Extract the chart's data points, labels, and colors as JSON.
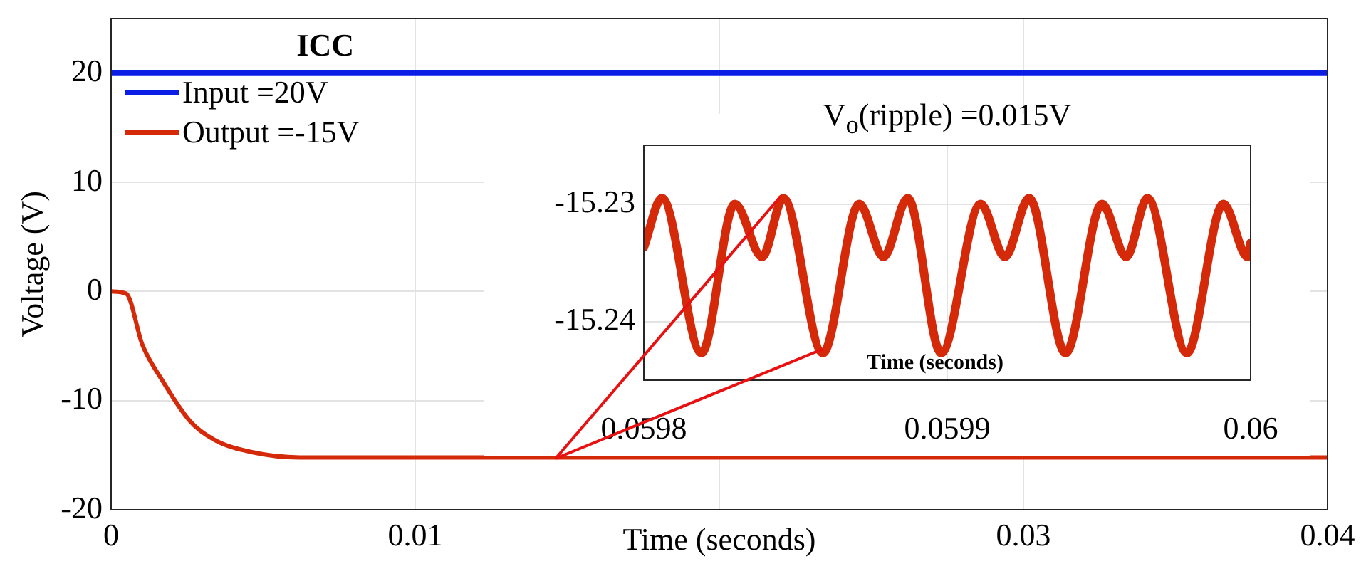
{
  "chart_data": [
    {
      "type": "line",
      "title": "ICC",
      "xlabel": "Time (seconds)",
      "ylabel": "Voltage (V)",
      "xlim": [
        0,
        0.04
      ],
      "xticks": [
        0,
        0.01,
        {
          "value": 0.02,
          "label": null
        },
        0.03,
        0.04
      ],
      "ylim": [
        -20,
        25
      ],
      "yticks": [
        -20,
        -10,
        0,
        10,
        20
      ],
      "grid": true,
      "legend": "top left",
      "series": [
        {
          "name": "Input =20V",
          "color": "#0a1ee6",
          "x": [
            0,
            0.04
          ],
          "values": [
            20,
            20
          ]
        },
        {
          "name": "Output =-15V",
          "color": "#d42a0a",
          "x": [
            0,
            0.0005,
            0.00103,
            0.00165,
            0.0026,
            0.0034,
            0.0046,
            0.0062,
            0.01,
            0.02,
            0.03,
            0.04
          ],
          "values": [
            0,
            -0.2,
            -4.9,
            -8,
            -11.9,
            -13.6,
            -14.7,
            -15.2,
            -15.2,
            -15.2,
            -15.2,
            -15.2
          ]
        }
      ]
    },
    {
      "type": "line",
      "title": "V$_{o}$(ripple) =0.015V",
      "xlabel": "Time (seconds)",
      "xlim": [
        0.0598,
        0.06
      ],
      "xticks": [
        0.0598,
        0.0599,
        0.06
      ],
      "ylim": [
        -15.245,
        -15.225
      ],
      "yticks": [
        -15.24,
        -15.23
      ],
      "grid": true,
      "series": [
        {
          "color": "#d42a0a",
          "x": [
            0.0598,
            0.059806,
            0.059819,
            0.05983,
            0.059839,
            0.059846,
            0.059859,
            0.059871,
            0.059879,
            0.059887,
            0.059898,
            0.059911,
            0.059919,
            0.059927,
            0.059939,
            0.059951,
            0.059959,
            0.059966,
            0.059979,
            0.059991,
            0.059999,
            0.06
          ],
          "values": [
            -15.2337,
            -15.2295,
            -15.2427,
            -15.23,
            -15.2345,
            -15.2295,
            -15.2427,
            -15.23,
            -15.2345,
            -15.2295,
            -15.2427,
            -15.23,
            -15.2345,
            -15.2295,
            -15.2427,
            -15.23,
            -15.2345,
            -15.2295,
            -15.2427,
            -15.23,
            -15.2345,
            -15.2333
          ]
        }
      ]
    }
  ]
}
